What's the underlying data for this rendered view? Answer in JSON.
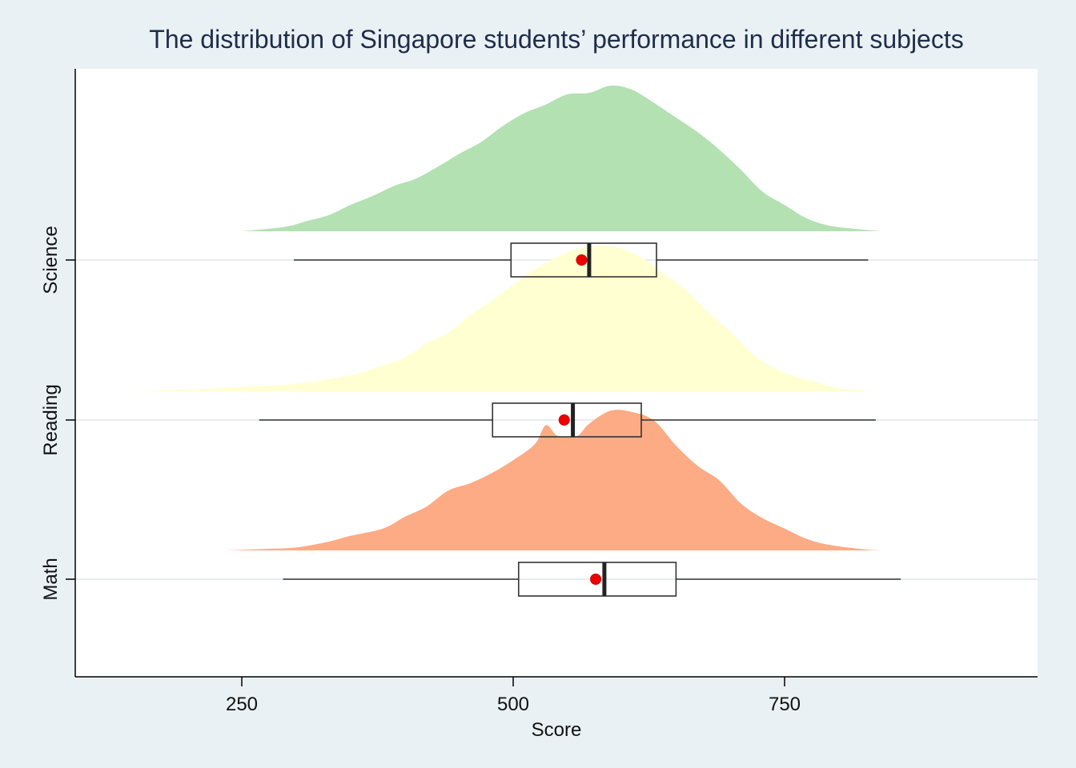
{
  "chart_data": {
    "type": "raincloud",
    "title": "The distribution of Singapore students’ performance in different subjects",
    "xlabel": "Score",
    "ylabel": "",
    "xlim": [
      110,
      975
    ],
    "x_ticks": [
      250,
      500,
      750
    ],
    "grid": "horizontal",
    "legend": "none",
    "categories": [
      "Math",
      "Reading",
      "Science"
    ],
    "series": [
      {
        "name": "Math",
        "color": "#fcab84",
        "box": {
          "whisker_low": 288,
          "q1": 505,
          "median": 584,
          "q3": 650,
          "whisker_high": 857
        },
        "mean": 576,
        "density": {
          "x": [
            235,
            270,
            300,
            330,
            350,
            380,
            400,
            420,
            440,
            460,
            480,
            500,
            520,
            530,
            540,
            550,
            560,
            570,
            590,
            610,
            630,
            650,
            670,
            690,
            710,
            730,
            750,
            770,
            790,
            820,
            840,
            860
          ],
          "y": [
            0.0,
            0.01,
            0.02,
            0.06,
            0.1,
            0.15,
            0.23,
            0.3,
            0.41,
            0.46,
            0.53,
            0.62,
            0.73,
            0.86,
            0.79,
            0.78,
            0.79,
            0.87,
            0.96,
            0.95,
            0.89,
            0.72,
            0.58,
            0.48,
            0.32,
            0.22,
            0.15,
            0.08,
            0.04,
            0.01,
            0.0,
            0.0
          ]
        }
      },
      {
        "name": "Reading",
        "color": "#ffffd2",
        "box": {
          "whisker_low": 266,
          "q1": 481,
          "median": 555,
          "q3": 618,
          "whisker_high": 834
        },
        "mean": 547,
        "density": {
          "x": [
            140,
            200,
            250,
            300,
            350,
            380,
            400,
            420,
            440,
            460,
            480,
            500,
            520,
            540,
            560,
            580,
            600,
            620,
            640,
            660,
            680,
            700,
            720,
            740,
            760,
            780,
            800,
            830
          ],
          "y": [
            0.0,
            0.01,
            0.03,
            0.05,
            0.11,
            0.18,
            0.23,
            0.33,
            0.4,
            0.52,
            0.62,
            0.73,
            0.84,
            0.92,
            0.98,
            1.0,
            0.98,
            0.91,
            0.8,
            0.69,
            0.54,
            0.41,
            0.26,
            0.16,
            0.1,
            0.06,
            0.02,
            0.0
          ]
        }
      },
      {
        "name": "Science",
        "color": "#b3e1b1",
        "box": {
          "whisker_low": 298,
          "q1": 498,
          "median": 570,
          "q3": 632,
          "whisker_high": 827
        },
        "mean": 563,
        "density": {
          "x": [
            250,
            290,
            310,
            330,
            350,
            370,
            390,
            410,
            430,
            450,
            470,
            490,
            510,
            530,
            550,
            570,
            590,
            610,
            630,
            650,
            670,
            690,
            710,
            730,
            750,
            770,
            790,
            810,
            840,
            860
          ],
          "y": [
            0.0,
            0.03,
            0.07,
            0.11,
            0.18,
            0.24,
            0.31,
            0.36,
            0.44,
            0.53,
            0.61,
            0.72,
            0.81,
            0.87,
            0.94,
            0.95,
            1.0,
            0.97,
            0.88,
            0.78,
            0.68,
            0.56,
            0.42,
            0.27,
            0.18,
            0.09,
            0.04,
            0.02,
            0.0,
            0.0
          ]
        }
      }
    ]
  }
}
